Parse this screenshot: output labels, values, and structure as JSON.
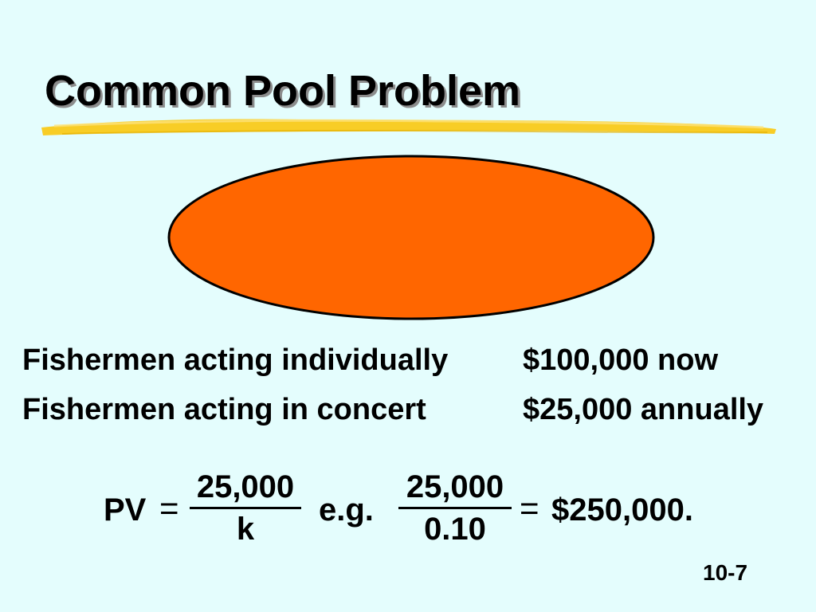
{
  "slide": {
    "title": "Common Pool Problem",
    "background_color": "#e4fdfd",
    "brush_color": "#f9c80e",
    "pool_color": "#ff6600",
    "rows": [
      {
        "who": "Fishermen acting individually",
        "amount": "$100,000 now"
      },
      {
        "who": "Fishermen acting in concert",
        "amount": "$25,000 annually"
      }
    ],
    "formula": {
      "lhs": "PV",
      "equals": "=",
      "frac1_num": "25,000",
      "frac1_den": "k",
      "eg": "e.g.",
      "frac2_num": "25,000",
      "frac2_den": "0.10",
      "result": "$250,000."
    },
    "slide_number": "10-7"
  }
}
